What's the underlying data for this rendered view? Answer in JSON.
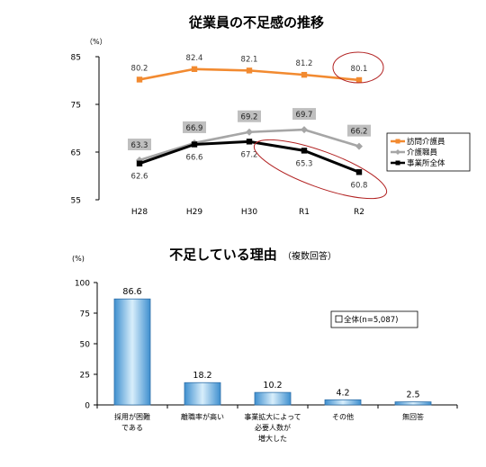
{
  "chart_data": [
    {
      "type": "line",
      "title": "従業員の不足感の推移",
      "yunit": "（%）",
      "ylim": [
        55,
        85
      ],
      "yticks": [
        55,
        65,
        75,
        85
      ],
      "categories": [
        "H28",
        "H29",
        "H30",
        "R1",
        "R2"
      ],
      "grid": false,
      "legend_position": "right",
      "series": [
        {
          "name": "訪問介護員",
          "color": "#F28A30",
          "marker": "square",
          "values": [
            80.2,
            82.4,
            82.1,
            81.2,
            80.1
          ],
          "label_values": [
            "80.2",
            "82.4",
            "82.1",
            "81.2",
            "80.1"
          ],
          "labels_boxed": false
        },
        {
          "name": "介護職員",
          "color": "#A6A6A6",
          "marker": "diamond",
          "values": [
            63.3,
            66.9,
            69.2,
            69.7,
            66.2
          ],
          "label_values": [
            "63.3",
            "66.9",
            "69.2",
            "69.7",
            "66.2"
          ],
          "labels_boxed": true
        },
        {
          "name": "事業所全体",
          "color": "#000000",
          "marker": "square",
          "values": [
            62.6,
            66.6,
            67.2,
            65.3,
            60.8
          ],
          "label_values": [
            "62.6",
            "66.6",
            "67.2",
            "65.3",
            "60.8"
          ],
          "labels_boxed": false
        }
      ]
    },
    {
      "type": "bar",
      "title": "不足している理由",
      "subtitle": "（複数回答）",
      "yunit": "(%)",
      "ylim": [
        0,
        100
      ],
      "yticks": [
        0,
        25,
        50,
        75,
        100
      ],
      "legend": "全体(n=5,087)",
      "categories": [
        [
          "採用が困難",
          "である"
        ],
        [
          "離職率が高い"
        ],
        [
          "事業拡大によって",
          "必要人数が",
          "増大した"
        ],
        [
          "その他"
        ],
        [
          "無回答"
        ]
      ],
      "values": [
        86.6,
        18.2,
        10.2,
        4.2,
        2.5
      ],
      "value_labels": [
        "86.6",
        "18.2",
        "10.2",
        "4.2",
        "2.5"
      ],
      "bar_color": "#7FC4EC"
    }
  ]
}
